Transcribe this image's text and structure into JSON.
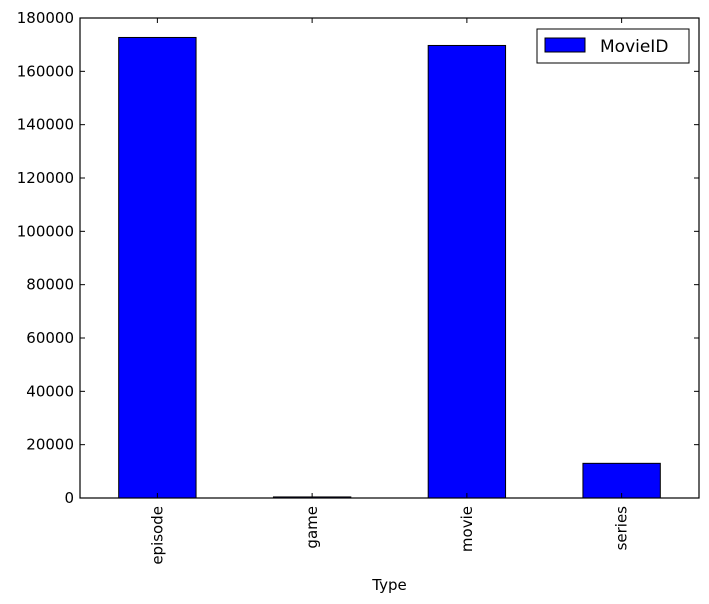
{
  "chart_data": {
    "type": "bar",
    "title": "",
    "xlabel": "Type",
    "ylabel": "",
    "categories": [
      "episode",
      "game",
      "movie",
      "series"
    ],
    "series": [
      {
        "name": "MovieID",
        "values": [
          172700,
          400,
          169700,
          13000
        ],
        "color": "#0000ff"
      }
    ],
    "ylim": [
      0,
      180000
    ],
    "yticks": [
      0,
      20000,
      40000,
      60000,
      80000,
      100000,
      120000,
      140000,
      160000,
      180000
    ],
    "ytick_labels": [
      "0",
      "20000",
      "40000",
      "60000",
      "80000",
      "100000",
      "120000",
      "140000",
      "160000",
      "180000"
    ],
    "grid": false,
    "legend_position": "top-right",
    "x_tick_rotation": "vertical"
  }
}
